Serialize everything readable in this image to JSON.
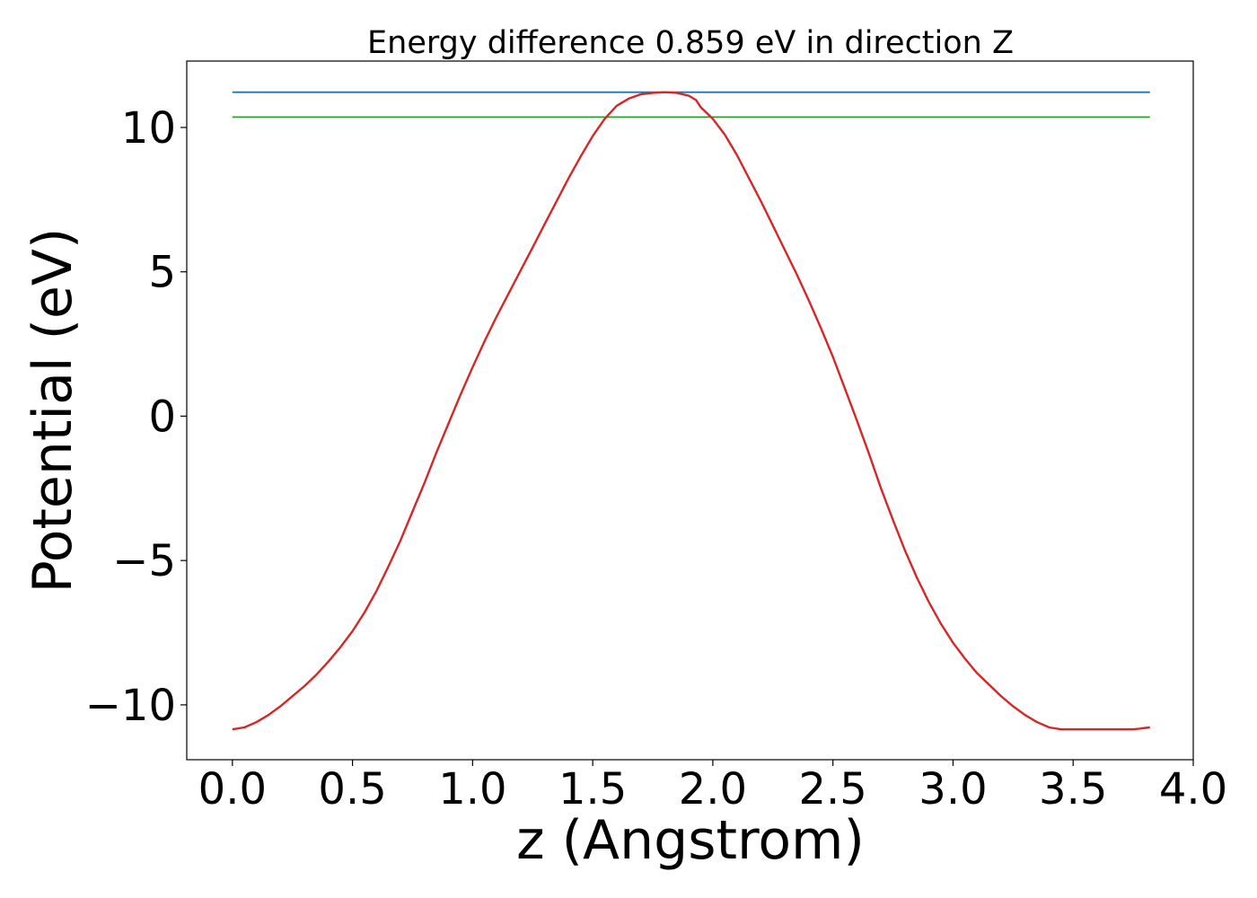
{
  "chart_data": {
    "type": "line",
    "title": "Energy difference 0.859 eV in direction Z",
    "xlabel": "z (Angstrom)",
    "ylabel": "Potential (eV)",
    "xlim": [
      -0.19,
      4.0
    ],
    "ylim": [
      -11.9,
      12.3
    ],
    "xticks": [
      0.0,
      0.5,
      1.0,
      1.5,
      2.0,
      2.5,
      3.0,
      3.5,
      4.0
    ],
    "xtick_labels": [
      "0.0",
      "0.5",
      "1.0",
      "1.5",
      "2.0",
      "2.5",
      "3.0",
      "3.5",
      "4.0"
    ],
    "yticks": [
      -10,
      -5,
      0,
      5,
      10
    ],
    "ytick_labels": [
      "−10",
      "−5",
      "0",
      "5",
      "10"
    ],
    "grid": false,
    "series": [
      {
        "color": "#1f77b4",
        "x": [
          0.0,
          3.82
        ],
        "y": [
          11.22,
          11.22
        ]
      },
      {
        "color": "#2ca02c",
        "x": [
          0.0,
          3.82
        ],
        "y": [
          10.36,
          10.36
        ]
      },
      {
        "color": "#d62728",
        "x": [
          0.0,
          0.05,
          0.1,
          0.15,
          0.2,
          0.25,
          0.3,
          0.35,
          0.4,
          0.45,
          0.5,
          0.55,
          0.6,
          0.65,
          0.7,
          0.75,
          0.8,
          0.85,
          0.9,
          0.95,
          1.0,
          1.05,
          1.1,
          1.15,
          1.2,
          1.25,
          1.3,
          1.35,
          1.4,
          1.45,
          1.5,
          1.55,
          1.6,
          1.65,
          1.7,
          1.75,
          1.8,
          1.85,
          1.9,
          1.93,
          1.95,
          2.0,
          2.05,
          2.1,
          2.15,
          2.2,
          2.25,
          2.3,
          2.35,
          2.4,
          2.45,
          2.5,
          2.55,
          2.6,
          2.65,
          2.7,
          2.75,
          2.8,
          2.85,
          2.9,
          2.95,
          3.0,
          3.05,
          3.1,
          3.15,
          3.2,
          3.25,
          3.3,
          3.35,
          3.4,
          3.45,
          3.5,
          3.55,
          3.6,
          3.65,
          3.7,
          3.75,
          3.82
        ],
        "y": [
          -10.85,
          -10.78,
          -10.6,
          -10.35,
          -10.05,
          -9.7,
          -9.35,
          -8.95,
          -8.5,
          -8.0,
          -7.45,
          -6.8,
          -6.05,
          -5.2,
          -4.3,
          -3.3,
          -2.3,
          -1.25,
          -0.25,
          0.75,
          1.7,
          2.6,
          3.45,
          4.25,
          5.05,
          5.85,
          6.65,
          7.45,
          8.25,
          9.0,
          9.7,
          10.3,
          10.75,
          11.0,
          11.15,
          11.2,
          11.22,
          11.2,
          11.1,
          10.95,
          10.7,
          10.3,
          9.75,
          9.05,
          8.25,
          7.45,
          6.6,
          5.75,
          4.9,
          4.0,
          3.05,
          2.05,
          0.95,
          -0.15,
          -1.3,
          -2.5,
          -3.6,
          -4.65,
          -5.6,
          -6.45,
          -7.2,
          -7.85,
          -8.4,
          -8.9,
          -9.3,
          -9.7,
          -10.05,
          -10.35,
          -10.6,
          -10.78,
          -10.85,
          -10.85,
          -10.85,
          -10.85,
          -10.85,
          -10.85,
          -10.85,
          -10.78
        ]
      }
    ]
  }
}
